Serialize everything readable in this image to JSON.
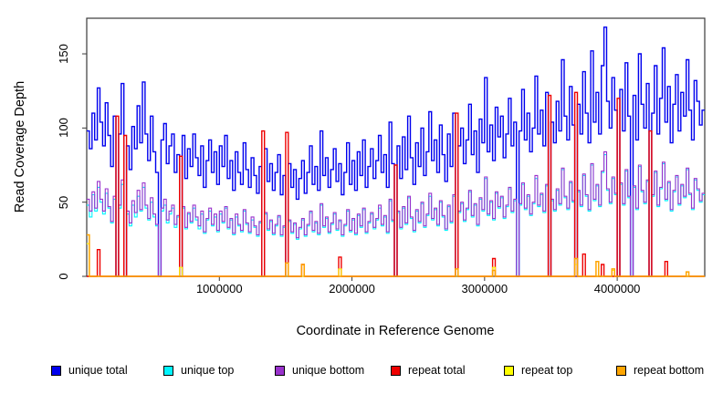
{
  "figure": {
    "background": "#FFFFFF",
    "frame_color": "#3a3a3a",
    "text_color": "#000000"
  },
  "chart_data": {
    "type": "line",
    "title": "",
    "xlabel": "Coordinate in Reference Genome",
    "ylabel": "Read Coverage Depth",
    "step_mode": "after",
    "grid": false,
    "legend_position": "bottom-row",
    "x_start": 0,
    "x_step": 20000,
    "n_points": 233,
    "xlim": [
      0,
      4660000
    ],
    "ylim": [
      0,
      174
    ],
    "x_ticks": [
      1000000,
      2000000,
      3000000,
      4000000
    ],
    "x_tick_labels": [
      "1000000",
      "2000000",
      "3000000",
      "4000000"
    ],
    "y_ticks": [
      0,
      50,
      100,
      150
    ],
    "y_tick_labels": [
      "0",
      "50",
      "100",
      "150"
    ],
    "frame_color": "#3a3a3a",
    "series": [
      {
        "name": "unique total",
        "color": "#0000EE",
        "width": 1.4,
        "values": [
          98,
          86,
          110,
          92,
          127,
          104,
          88,
          117,
          95,
          74,
          108,
          0,
          96,
          130,
          0,
          88,
          72,
          101,
          86,
          115,
          90,
          131,
          96,
          78,
          108,
          84,
          70,
          0,
          92,
          103,
          76,
          88,
          96,
          70,
          82,
          0,
          95,
          66,
          86,
          74,
          96,
          80,
          68,
          88,
          60,
          78,
          92,
          70,
          84,
          62,
          88,
          74,
          95,
          66,
          78,
          58,
          84,
          70,
          62,
          90,
          72,
          60,
          80,
          68,
          56,
          74,
          0,
          86,
          64,
          76,
          58,
          70,
          82,
          55,
          68,
          0,
          76,
          60,
          72,
          52,
          66,
          78,
          56,
          70,
          88,
          62,
          74,
          58,
          98,
          68,
          80,
          60,
          72,
          86,
          64,
          76,
          55,
          70,
          90,
          62,
          78,
          58,
          84,
          68,
          92,
          60,
          74,
          86,
          66,
          78,
          95,
          70,
          82,
          60,
          104,
          76,
          0,
          88,
          66,
          94,
          72,
          108,
          80,
          62,
          90,
          74,
          100,
          68,
          84,
          111,
          78,
          92,
          70,
          102,
          82,
          64,
          96,
          74,
          110,
          0,
          88,
          100,
          76,
          92,
          116,
          82,
          98,
          70,
          106,
          90,
          134,
          84,
          102,
          78,
          114,
          94,
          108,
          80,
          96,
          120,
          88,
          104,
          0,
          98,
          126,
          92,
          110,
          84,
          100,
          135,
          96,
          112,
          88,
          124,
          0,
          104,
          90,
          118,
          98,
          146,
          108,
          92,
          128,
          102,
          0,
          116,
          96,
          138,
          110,
          90,
          152,
          104,
          124,
          96,
          142,
          168,
          118,
          100,
          134,
          112,
          0,
          126,
          98,
          144,
          108,
          0,
          122,
          92,
          150,
          116,
          100,
          130,
          0,
          110,
          142,
          96,
          120,
          154,
          104,
          128,
          90,
          116,
          136,
          98,
          124,
          108,
          146,
          112,
          92,
          132,
          118,
          102,
          112
        ]
      },
      {
        "name": "unique top",
        "color": "#00F5FF",
        "width": 1.1,
        "values": [
          48,
          40,
          55,
          44,
          60,
          50,
          42,
          56,
          46,
          36,
          52,
          0,
          46,
          62,
          0,
          42,
          34,
          48,
          40,
          54,
          44,
          60,
          46,
          38,
          50,
          40,
          34,
          0,
          44,
          48,
          36,
          42,
          46,
          33,
          40,
          0,
          46,
          32,
          42,
          36,
          46,
          38,
          32,
          42,
          29,
          38,
          44,
          34,
          40,
          30,
          42,
          36,
          46,
          32,
          38,
          28,
          40,
          34,
          30,
          44,
          35,
          29,
          38,
          33,
          27,
          36,
          0,
          42,
          31,
          37,
          28,
          34,
          40,
          27,
          33,
          0,
          37,
          29,
          35,
          25,
          32,
          38,
          27,
          34,
          43,
          30,
          36,
          28,
          48,
          33,
          39,
          29,
          35,
          42,
          31,
          37,
          27,
          34,
          44,
          30,
          38,
          28,
          41,
          33,
          45,
          29,
          36,
          42,
          32,
          38,
          46,
          34,
          40,
          29,
          51,
          37,
          0,
          43,
          32,
          46,
          35,
          53,
          39,
          30,
          44,
          36,
          49,
          33,
          41,
          54,
          38,
          45,
          34,
          50,
          40,
          31,
          47,
          36,
          54,
          0,
          43,
          49,
          37,
          45,
          57,
          40,
          48,
          34,
          52,
          44,
          66,
          41,
          50,
          38,
          56,
          46,
          53,
          39,
          47,
          59,
          43,
          51,
          0,
          48,
          62,
          45,
          54,
          41,
          49,
          66,
          47,
          55,
          43,
          61,
          0,
          51,
          44,
          58,
          48,
          72,
          53,
          45,
          63,
          50,
          0,
          57,
          47,
          68,
          54,
          44,
          75,
          51,
          61,
          47,
          70,
          82,
          58,
          49,
          66,
          55,
          0,
          62,
          48,
          71,
          53,
          0,
          60,
          45,
          74,
          57,
          49,
          64,
          0,
          54,
          70,
          47,
          59,
          76,
          51,
          63,
          44,
          57,
          67,
          48,
          61,
          53,
          72,
          55,
          45,
          65,
          58,
          50,
          55
        ]
      },
      {
        "name": "unique bottom",
        "color": "#9932CC",
        "width": 1.1,
        "values": [
          52,
          44,
          57,
          46,
          64,
          52,
          44,
          59,
          47,
          37,
          54,
          0,
          48,
          65,
          0,
          44,
          36,
          51,
          43,
          58,
          45,
          63,
          48,
          39,
          53,
          42,
          35,
          0,
          46,
          52,
          38,
          44,
          48,
          35,
          41,
          0,
          47,
          33,
          43,
          37,
          48,
          40,
          34,
          44,
          30,
          39,
          46,
          35,
          42,
          31,
          44,
          37,
          47,
          33,
          39,
          29,
          42,
          35,
          31,
          45,
          36,
          30,
          40,
          34,
          28,
          37,
          0,
          43,
          32,
          38,
          29,
          35,
          41,
          28,
          34,
          0,
          38,
          30,
          36,
          26,
          33,
          39,
          28,
          35,
          44,
          31,
          37,
          29,
          49,
          34,
          40,
          30,
          36,
          43,
          32,
          38,
          28,
          35,
          45,
          31,
          39,
          29,
          42,
          34,
          46,
          30,
          37,
          43,
          33,
          39,
          48,
          35,
          41,
          30,
          52,
          38,
          0,
          44,
          33,
          47,
          36,
          54,
          40,
          31,
          45,
          37,
          50,
          34,
          42,
          56,
          39,
          46,
          35,
          51,
          41,
          32,
          48,
          37,
          55,
          0,
          44,
          50,
          38,
          46,
          58,
          41,
          49,
          35,
          53,
          45,
          67,
          42,
          51,
          39,
          57,
          47,
          54,
          40,
          48,
          60,
          44,
          52,
          0,
          49,
          63,
          46,
          55,
          42,
          50,
          68,
          48,
          56,
          44,
          62,
          0,
          52,
          45,
          59,
          49,
          73,
          54,
          46,
          64,
          51,
          0,
          58,
          48,
          69,
          55,
          45,
          76,
          52,
          62,
          48,
          71,
          84,
          59,
          50,
          67,
          56,
          0,
          63,
          49,
          72,
          54,
          0,
          61,
          46,
          75,
          58,
          50,
          65,
          0,
          55,
          71,
          48,
          60,
          77,
          52,
          64,
          45,
          58,
          68,
          49,
          62,
          54,
          73,
          56,
          46,
          66,
          59,
          51,
          56
        ]
      },
      {
        "name": "repeat total",
        "color": "#EE0000",
        "width": 1.4,
        "spikes": [
          [
            4,
            18
          ],
          [
            11,
            108
          ],
          [
            14,
            95
          ],
          [
            35,
            81
          ],
          [
            66,
            98
          ],
          [
            75,
            97
          ],
          [
            81,
            8
          ],
          [
            95,
            13
          ],
          [
            116,
            75
          ],
          [
            139,
            110
          ],
          [
            153,
            12
          ],
          [
            174,
            122
          ],
          [
            184,
            124
          ],
          [
            187,
            15
          ],
          [
            194,
            8
          ],
          [
            200,
            120
          ],
          [
            212,
            98
          ],
          [
            218,
            10
          ]
        ]
      },
      {
        "name": "repeat top",
        "color": "#FFFF00",
        "width": 1.1,
        "spikes": [
          [
            0,
            22
          ],
          [
            35,
            6
          ],
          [
            95,
            5
          ],
          [
            153,
            6
          ],
          [
            184,
            8
          ],
          [
            198,
            4
          ]
        ]
      },
      {
        "name": "repeat bottom",
        "color": "#FFA500",
        "width": 1.5,
        "spikes": [
          [
            0,
            28
          ],
          [
            75,
            9
          ],
          [
            81,
            8
          ],
          [
            139,
            5
          ],
          [
            153,
            4
          ],
          [
            184,
            12
          ],
          [
            192,
            10
          ],
          [
            198,
            5
          ],
          [
            226,
            3
          ]
        ]
      }
    ]
  }
}
